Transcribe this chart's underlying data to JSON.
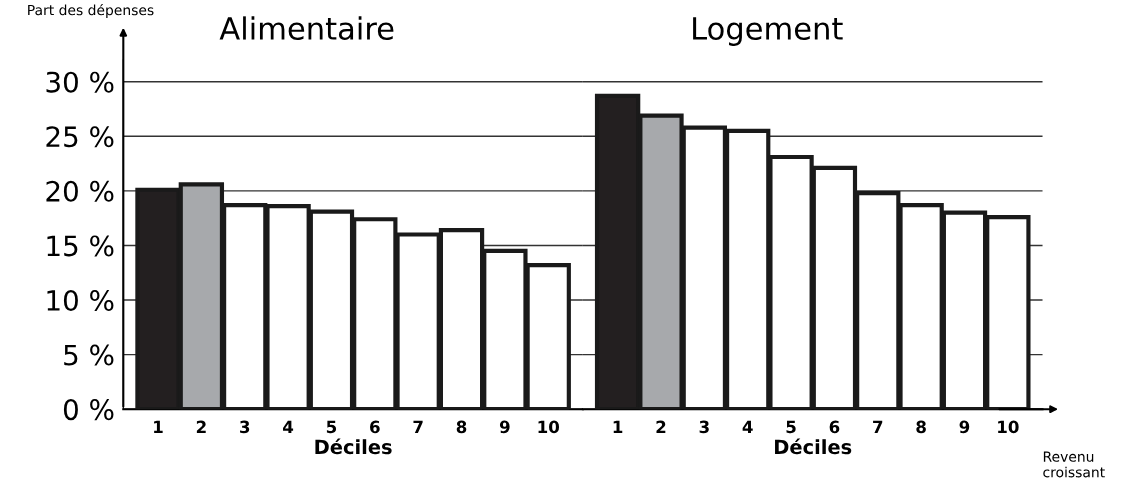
{
  "chart_data": [
    {
      "type": "bar",
      "title": "Alimentaire",
      "ylabel": "Part des dépenses",
      "xlabel": "Déciles",
      "categories": [
        "1",
        "2",
        "3",
        "4",
        "5",
        "6",
        "7",
        "8",
        "9",
        "10"
      ],
      "values": [
        20.1,
        20.6,
        18.7,
        18.6,
        18.1,
        17.4,
        16.0,
        16.4,
        14.5,
        13.2
      ],
      "colors": [
        "#231f20",
        "#a7a9ac",
        "#ffffff",
        "#ffffff",
        "#ffffff",
        "#ffffff",
        "#ffffff",
        "#ffffff",
        "#ffffff",
        "#ffffff"
      ],
      "ylim": [
        0,
        32
      ],
      "yticks": [
        {
          "value": 0,
          "label": "0 %"
        },
        {
          "value": 5,
          "label": "5 %"
        },
        {
          "value": 10,
          "label": "10 %"
        },
        {
          "value": 15,
          "label": "15 %"
        },
        {
          "value": 20,
          "label": "20 %"
        },
        {
          "value": 25,
          "label": "25 %"
        },
        {
          "value": 30,
          "label": "30 %"
        }
      ],
      "grid": "y"
    },
    {
      "type": "bar",
      "title": "Logement",
      "xlabel": "Déciles",
      "categories": [
        "1",
        "2",
        "3",
        "4",
        "5",
        "6",
        "7",
        "8",
        "9",
        "10"
      ],
      "values": [
        28.7,
        26.9,
        25.8,
        25.5,
        23.1,
        22.1,
        19.8,
        18.7,
        18.0,
        17.6
      ],
      "colors": [
        "#231f20",
        "#a7a9ac",
        "#ffffff",
        "#ffffff",
        "#ffffff",
        "#ffffff",
        "#ffffff",
        "#ffffff",
        "#ffffff",
        "#ffffff"
      ],
      "ylim": [
        0,
        32
      ],
      "yticks": [
        {
          "value": 0,
          "label": null
        },
        {
          "value": 5,
          "label": null
        },
        {
          "value": 10,
          "label": null
        },
        {
          "value": 15,
          "label": null
        },
        {
          "value": 20,
          "label": null
        },
        {
          "value": 25,
          "label": null
        },
        {
          "value": 30,
          "label": null
        }
      ],
      "tick_labels": "x",
      "grid": "y",
      "annotations": [
        "Revenu croissant"
      ]
    }
  ]
}
